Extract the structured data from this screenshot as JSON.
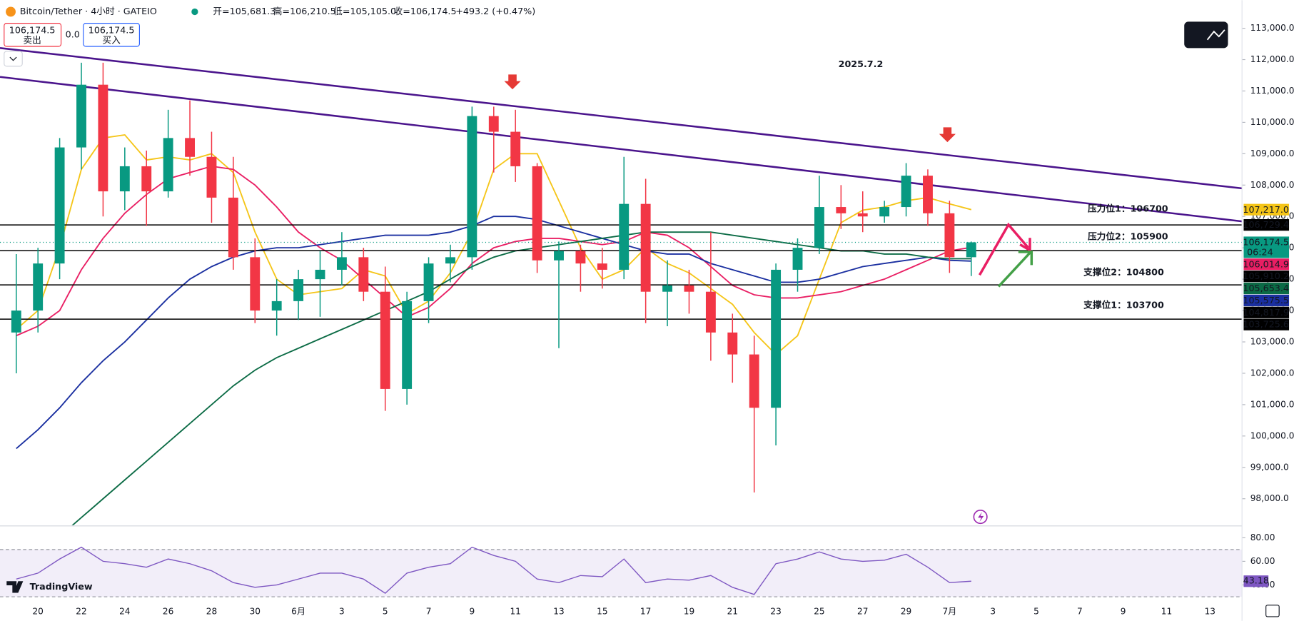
{
  "header": {
    "symbol": "Bitcoin/Tether · 4小时 · GATEIO",
    "open": "开=105,681.3",
    "high": "高=106,210.5",
    "low": "低=105,105.0",
    "close": "收=106,174.5",
    "change": "+493.2 (+0.47%)",
    "sell_price": "106,174.5",
    "sell": "卖出",
    "spread": "0.0",
    "buy_price": "106,174.5",
    "buy": "买入",
    "logo": "TradingView"
  },
  "chart_data": {
    "type": "candlestick",
    "title": "2025.7.2",
    "categories": [
      null,
      "20",
      null,
      "22",
      null,
      "24",
      null,
      "26",
      null,
      "28",
      null,
      "30",
      null,
      "6月",
      null,
      "3",
      null,
      "5",
      null,
      "7",
      null,
      "9",
      null,
      "11",
      null,
      "13",
      null,
      "15",
      null,
      "17",
      null,
      "19",
      null,
      "21",
      null,
      "23",
      null,
      "25",
      null,
      "27",
      null,
      "29",
      null,
      "7月",
      null,
      "3",
      null,
      "5",
      null,
      "7",
      null,
      "9",
      null,
      "11",
      null,
      "13"
    ],
    "open": [
      103300,
      104000,
      105500,
      109200,
      111200,
      107800,
      108600,
      107800,
      109500,
      108900,
      107600,
      105700,
      104000,
      104300,
      105000,
      105300,
      105700,
      104600,
      101500,
      104300,
      105500,
      105700,
      110200,
      109700,
      108600,
      105600,
      105900,
      105500,
      105300,
      107400,
      104600,
      104800,
      104600,
      103300,
      102600,
      100900,
      105300,
      106000,
      107300,
      107100,
      107000,
      107300,
      108300,
      107100,
      105700,
      null,
      null,
      null,
      null,
      null,
      null,
      null,
      null,
      null,
      null,
      null
    ],
    "high": [
      105800,
      106000,
      109500,
      111900,
      111900,
      109200,
      109100,
      110400,
      110700,
      109700,
      108900,
      106300,
      105000,
      105300,
      105900,
      106500,
      106000,
      105400,
      104600,
      105700,
      106100,
      110500,
      110500,
      110400,
      108700,
      106200,
      106100,
      106000,
      108900,
      108200,
      105600,
      105300,
      106500,
      103900,
      103200,
      105500,
      106300,
      108300,
      108000,
      107800,
      107500,
      108700,
      108500,
      107500,
      106200,
      null,
      null,
      null,
      null,
      null,
      null,
      null,
      null,
      null,
      null,
      null
    ],
    "low": [
      102000,
      103300,
      105000,
      108500,
      107000,
      107200,
      106700,
      107600,
      108300,
      106800,
      105300,
      103600,
      103200,
      103700,
      103800,
      104800,
      104300,
      100800,
      101000,
      103600,
      104900,
      105300,
      108400,
      108100,
      105200,
      102800,
      104600,
      104700,
      105000,
      103600,
      103500,
      103900,
      102400,
      101700,
      98200,
      99700,
      104600,
      105800,
      106600,
      106500,
      106800,
      107000,
      106700,
      105200,
      105100,
      null,
      null,
      null,
      null,
      null,
      null,
      null,
      null,
      null,
      null,
      null
    ],
    "close": [
      104000,
      105500,
      109200,
      111200,
      107800,
      108600,
      107800,
      109500,
      108900,
      107600,
      105700,
      104000,
      104300,
      105000,
      105300,
      105700,
      104600,
      101500,
      104300,
      105500,
      105700,
      110200,
      109700,
      108600,
      105600,
      105900,
      105500,
      105300,
      107400,
      104600,
      104800,
      104600,
      103300,
      102600,
      100900,
      105300,
      106000,
      107300,
      107100,
      107000,
      107300,
      108300,
      107100,
      105700,
      106174.5,
      null,
      null,
      null,
      null,
      null,
      null,
      null,
      null,
      null,
      null,
      null
    ],
    "up_color": "#089981",
    "down_color": "#f23645",
    "moving_averages": [
      {
        "color": "#f5c518",
        "values": [
          103400,
          104000,
          106000,
          108500,
          109500,
          109600,
          108800,
          108900,
          108800,
          109000,
          108400,
          106500,
          105000,
          104500,
          104600,
          104700,
          105300,
          105100,
          103900,
          104300,
          105200,
          106500,
          108500,
          109000,
          109000,
          107500,
          106000,
          105000,
          105300,
          106000,
          105500,
          105200,
          104700,
          104200,
          103300,
          102600,
          103200,
          105000,
          106800,
          107200,
          107300,
          107500,
          107600,
          107400,
          107217,
          null,
          null,
          null,
          null,
          null,
          null,
          null,
          null,
          null,
          null,
          null
        ]
      },
      {
        "color": "#e91e63",
        "values": [
          103200,
          103500,
          104000,
          105300,
          106300,
          107100,
          107700,
          108200,
          108400,
          108600,
          108500,
          108000,
          107300,
          106500,
          106000,
          105600,
          105000,
          104400,
          103800,
          104100,
          104700,
          105500,
          106000,
          106200,
          106300,
          106300,
          106200,
          106100,
          106200,
          106500,
          106400,
          106000,
          105400,
          104800,
          104500,
          104400,
          104400,
          104500,
          104600,
          104800,
          105000,
          105300,
          105600,
          105900,
          106014.9,
          null,
          null,
          null,
          null,
          null,
          null,
          null,
          null,
          null,
          null,
          null
        ]
      },
      {
        "color": "#1a2fa0",
        "values": [
          99600,
          100200,
          100900,
          101700,
          102400,
          103000,
          103700,
          104400,
          105000,
          105400,
          105700,
          105900,
          106000,
          106000,
          106100,
          106200,
          106300,
          106400,
          106400,
          106400,
          106500,
          106700,
          107000,
          107000,
          106900,
          106700,
          106500,
          106300,
          106100,
          105900,
          105800,
          105800,
          105500,
          105300,
          105100,
          104900,
          104900,
          105000,
          105200,
          105400,
          105500,
          105600,
          105700,
          105600,
          105575.5,
          null,
          null,
          null,
          null,
          null,
          null,
          null,
          null,
          null,
          null,
          null
        ]
      },
      {
        "color": "#0b6b45",
        "values": [
          95800,
          96300,
          96800,
          97400,
          98000,
          98600,
          99200,
          99800,
          100400,
          101000,
          101600,
          102100,
          102500,
          102800,
          103100,
          103400,
          103700,
          104000,
          104300,
          104600,
          105000,
          105400,
          105700,
          105900,
          106000,
          106100,
          106200,
          106300,
          106400,
          106500,
          106500,
          106500,
          106500,
          106400,
          106300,
          106200,
          106100,
          106000,
          105900,
          105900,
          105800,
          105800,
          105700,
          105650,
          105653.4,
          null,
          null,
          null,
          null,
          null,
          null,
          null,
          null,
          null,
          null,
          null
        ]
      }
    ],
    "ylim": [
      97160,
      113895
    ],
    "yticks": [
      {
        "value": 113000,
        "label": "113,000.0"
      },
      {
        "value": 112000,
        "label": "112,000.0"
      },
      {
        "value": 111000,
        "label": "111,000.0"
      },
      {
        "value": 110000,
        "label": "110,000.0"
      },
      {
        "value": 109000,
        "label": "109,000.0"
      },
      {
        "value": 108000,
        "label": "108,000.0"
      },
      {
        "value": 107000,
        "label": "107,000.0"
      },
      {
        "value": 106000,
        "label": "106,000.0"
      },
      {
        "value": 105000,
        "label": "105,000.0"
      },
      {
        "value": 104000,
        "label": "104,000.0"
      },
      {
        "value": 103000,
        "label": "103,000.0"
      },
      {
        "value": 102000,
        "label": "102,000.0"
      },
      {
        "value": 101000,
        "label": "101,000.0"
      },
      {
        "value": 100000,
        "label": "100,000.0"
      },
      {
        "value": 99000,
        "label": "99,000.0"
      },
      {
        "value": 98000,
        "label": "98,000.0"
      }
    ],
    "price_labels": [
      {
        "value": 107217.0,
        "label": "107,217.0",
        "color": "#f5c518",
        "text_color": "#222222"
      },
      {
        "value": 106729.4,
        "label": "106,729.4",
        "color": "#000000",
        "text_color": "#ffffff",
        "line": "solid"
      },
      {
        "value": 106174.5,
        "label": "106,174.5",
        "color": "#089981",
        "text_color": "#ffffff",
        "line": "dotted",
        "countdown": "06:24"
      },
      {
        "value": 106014.9,
        "label": "106,014.9",
        "color": "#e91e63",
        "text_color": "#ffffff"
      },
      {
        "value": 105910.2,
        "label": "105,910.2",
        "color": "#000000",
        "text_color": "#ffffff",
        "line": "solid"
      },
      {
        "value": 105653.4,
        "label": "105,653.4",
        "color": "#0b6b45",
        "text_color": "#ffffff"
      },
      {
        "value": 105575.5,
        "label": "105,575.5",
        "color": "#1a2fa0",
        "text_color": "#ffffff"
      },
      {
        "value": 104817.9,
        "label": "104,817.9",
        "color": "#000000",
        "text_color": "#ffffff",
        "line": "solid"
      },
      {
        "value": 103725.6,
        "label": "103,725.6",
        "color": "#000000",
        "text_color": "#ffffff",
        "line": "solid"
      }
    ],
    "annotations": [
      {
        "text": "压力位1：106700",
        "color": "#1b5e20"
      },
      {
        "text": "压力位2：105900",
        "color": "#1b5e20"
      },
      {
        "text": "支撑位2：104800",
        "color": "#e65100"
      },
      {
        "text": "支撑位1：103700",
        "color": "#e65100"
      }
    ],
    "rsi": {
      "color": "#7e57c2",
      "values": [
        45,
        50,
        62,
        72,
        60,
        58,
        55,
        62,
        58,
        52,
        42,
        38,
        40,
        45,
        50,
        50,
        45,
        33,
        50,
        55,
        58,
        72,
        65,
        60,
        45,
        42,
        48,
        47,
        62,
        42,
        45,
        44,
        48,
        38,
        32,
        58,
        62,
        68,
        62,
        60,
        61,
        66,
        55,
        42,
        43.18,
        null,
        null,
        null,
        null,
        null,
        null,
        null,
        null,
        null,
        null,
        null
      ],
      "ylim": [
        25,
        90
      ],
      "yticks": [
        {
          "value": 80,
          "label": "80.00"
        },
        {
          "value": 60,
          "label": "60.00"
        },
        {
          "value": 40,
          "label": "40.00"
        }
      ],
      "band": [
        30,
        70
      ],
      "current": 43.18
    }
  }
}
